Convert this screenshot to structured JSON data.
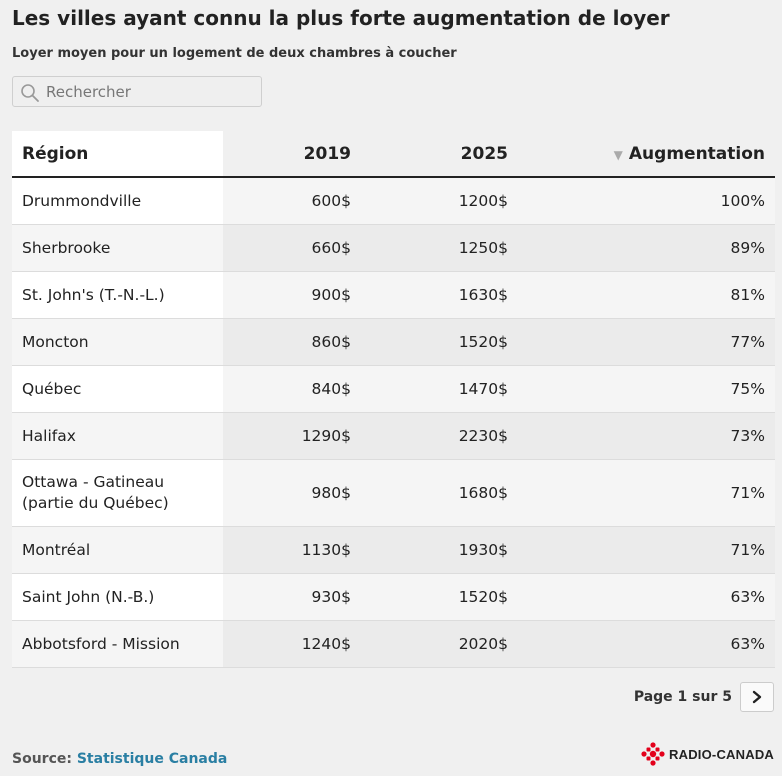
{
  "header": {
    "title": "Les villes ayant connu la plus forte augmentation de loyer",
    "subtitle": "Loyer moyen pour un logement de deux chambres à coucher"
  },
  "search": {
    "placeholder": "Rechercher",
    "icon": "search-icon"
  },
  "table": {
    "columns": [
      "Région",
      "2019",
      "2025",
      "Augmentation"
    ],
    "sorted_column": "Augmentation",
    "rows": [
      {
        "region": "Drummondville",
        "y2019": "600$",
        "y2025": "1200$",
        "increase": "100%"
      },
      {
        "region": "Sherbrooke",
        "y2019": "660$",
        "y2025": "1250$",
        "increase": "89%"
      },
      {
        "region": "St. John's (T.-N.-L.)",
        "y2019": "900$",
        "y2025": "1630$",
        "increase": "81%"
      },
      {
        "region": "Moncton",
        "y2019": "860$",
        "y2025": "1520$",
        "increase": "77%"
      },
      {
        "region": "Québec",
        "y2019": "840$",
        "y2025": "1470$",
        "increase": "75%"
      },
      {
        "region": "Halifax",
        "y2019": "1290$",
        "y2025": "2230$",
        "increase": "73%"
      },
      {
        "region": "Ottawa - Gatineau (partie du Québec)",
        "y2019": "980$",
        "y2025": "1680$",
        "increase": "71%"
      },
      {
        "region": "Montréal",
        "y2019": "1130$",
        "y2025": "1930$",
        "increase": "71%"
      },
      {
        "region": "Saint John (N.-B.)",
        "y2019": "930$",
        "y2025": "1520$",
        "increase": "63%"
      },
      {
        "region": "Abbotsford - Mission",
        "y2019": "1240$",
        "y2025": "2020$",
        "increase": "63%"
      }
    ]
  },
  "pagination": {
    "label": "Page 1 sur 5",
    "next_icon": "chevron-right-icon"
  },
  "footer": {
    "source_label": "Source:",
    "source_link": "Statistique Canada",
    "logo_text": "RADIO-CANADA"
  },
  "colors": {
    "link": "#2a7fa3",
    "logo_red": "#e3001b"
  }
}
